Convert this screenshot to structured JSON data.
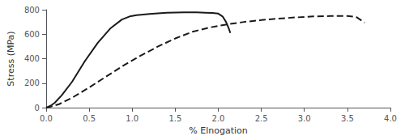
{
  "chart_data": {
    "type": "line",
    "xlabel": "% Elnogation",
    "ylabel": "Stress (MPa)",
    "xlim": [
      0,
      4.0
    ],
    "ylim": [
      0,
      800
    ],
    "xticks": [
      {
        "value": 0,
        "label": "0.0"
      },
      {
        "value": 0.5,
        "label": "0.5"
      },
      {
        "value": 1.0,
        "label": "1.0"
      },
      {
        "value": 1.5,
        "label": "1.5"
      },
      {
        "value": 2.0,
        "label": "2.0"
      },
      {
        "value": 2.5,
        "label": "2.5"
      },
      {
        "value": 3.0,
        "label": "3.0"
      },
      {
        "value": 3.5,
        "label": "3.5"
      },
      {
        "value": 4.0,
        "label": "4.0"
      }
    ],
    "yticks": [
      0,
      200,
      400,
      600,
      800
    ],
    "grid": false,
    "series": [
      {
        "color": "#1a1a1a",
        "line_style": "solid",
        "x": [
          0,
          0.02,
          0.05,
          0.1,
          0.18,
          0.3,
          0.45,
          0.6,
          0.75,
          0.88,
          0.97,
          1.05,
          1.2,
          1.4,
          1.6,
          1.75,
          1.85,
          1.93,
          2.0,
          2.05,
          2.09,
          2.12,
          2.14
        ],
        "values": [
          0,
          5,
          15,
          40,
          100,
          210,
          380,
          530,
          650,
          720,
          745,
          755,
          765,
          775,
          778,
          778,
          776,
          774,
          768,
          745,
          700,
          650,
          610
        ]
      },
      {
        "color": "#1a1a1a",
        "line_style": "dashed",
        "x": [
          0,
          0.05,
          0.15,
          0.3,
          0.5,
          0.7,
          0.9,
          1.1,
          1.3,
          1.5,
          1.7,
          1.9,
          2.1,
          2.3,
          2.5,
          2.7,
          2.9,
          3.1,
          3.3,
          3.5,
          3.6,
          3.7
        ],
        "values": [
          0,
          8,
          28,
          80,
          165,
          255,
          345,
          425,
          500,
          565,
          620,
          655,
          680,
          700,
          715,
          728,
          737,
          745,
          748,
          748,
          742,
          695
        ]
      }
    ]
  }
}
